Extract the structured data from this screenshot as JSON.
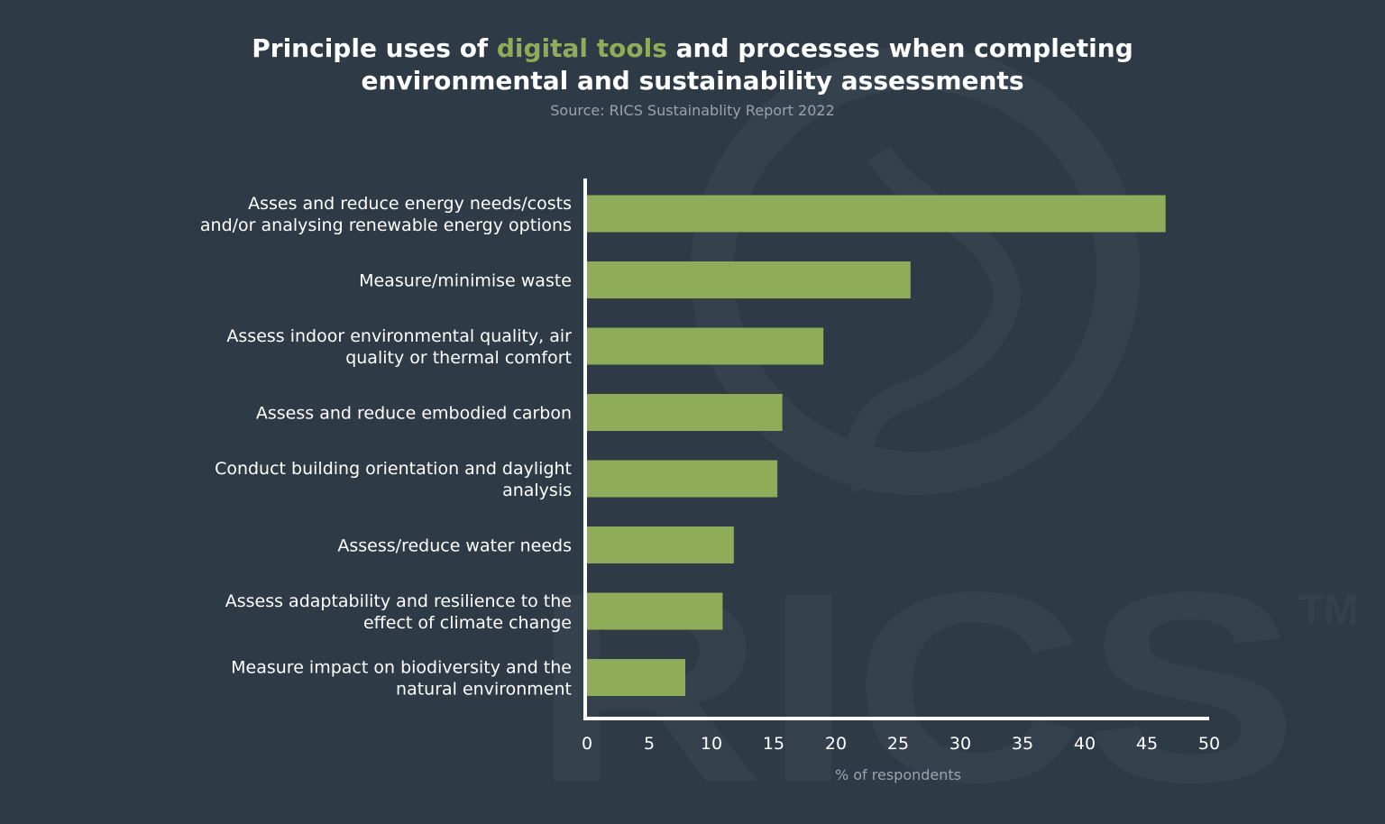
{
  "title": {
    "before": "Principle uses of ",
    "highlight": "digital tools",
    "after": " and processes when completing",
    "line2": "environmental and sustainability assessments"
  },
  "subtitle": "Source: RICS Sustainablity Report 2022",
  "watermark": {
    "text": "RICS",
    "trademark": "TM"
  },
  "colors": {
    "background": "#2e3a45",
    "bar": "#8fac58",
    "highlight": "#8fac58",
    "axis": "#ffffff"
  },
  "chart_data": {
    "type": "bar",
    "orientation": "horizontal",
    "title": "Principle uses of digital tools and processes when completing environmental and sustainability assessments",
    "xlabel": "% of respondents",
    "ylabel": "",
    "xlim": [
      0,
      50
    ],
    "xticks": [
      0,
      5,
      10,
      15,
      20,
      25,
      30,
      35,
      40,
      45,
      50
    ],
    "grid": false,
    "categories": [
      [
        "Asses and reduce energy needs/costs",
        "and/or analysing renewable energy options"
      ],
      [
        "Measure/minimise waste"
      ],
      [
        "Assess indoor environmental quality, air",
        "quality or thermal comfort"
      ],
      [
        "Assess and reduce embodied carbon"
      ],
      [
        "Conduct building orientation and daylight",
        "analysis"
      ],
      [
        "Assess/reduce water needs"
      ],
      [
        "Assess adaptability and resilience to the",
        "effect of climate change"
      ],
      [
        "Measure impact on biodiversity and the",
        "natural environment"
      ]
    ],
    "values": [
      46.5,
      26,
      19,
      15.7,
      15.3,
      11.8,
      10.9,
      7.9
    ]
  }
}
